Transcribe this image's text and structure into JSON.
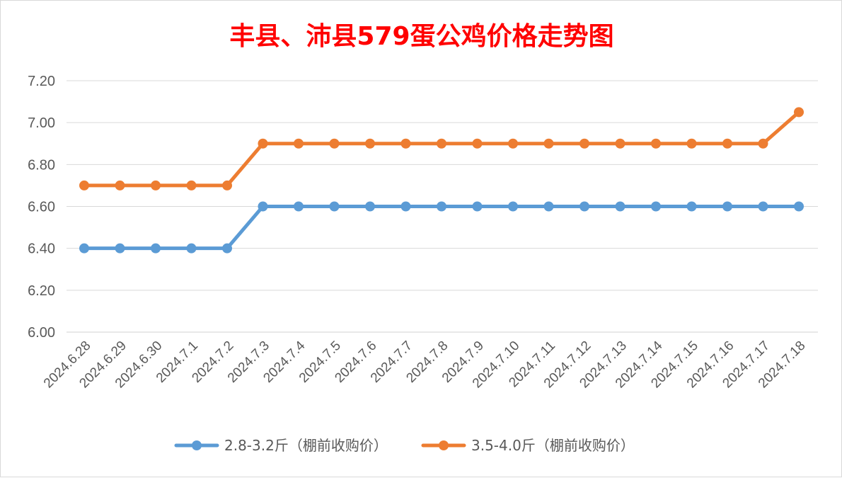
{
  "chart_data": {
    "type": "line",
    "title": "丰县、沛县579蛋公鸡价格走势图",
    "title_color": "#ff0000",
    "categories": [
      "2024.6.28",
      "2024.6.29",
      "2024.6.30",
      "2024.7.1",
      "2024.7.2",
      "2024.7.3",
      "2024.7.4",
      "2024.7.5",
      "2024.7.6",
      "2024.7.7",
      "2024.7.8",
      "2024.7.9",
      "2024.7.10",
      "2024.7.11",
      "2024.7.12",
      "2024.7.13",
      "2024.7.14",
      "2024.7.15",
      "2024.7.16",
      "2024.7.17",
      "2024.7.18"
    ],
    "series": [
      {
        "name": "2.8-3.2斤（棚前收购价）",
        "color": "#5b9bd5",
        "values": [
          6.4,
          6.4,
          6.4,
          6.4,
          6.4,
          6.6,
          6.6,
          6.6,
          6.6,
          6.6,
          6.6,
          6.6,
          6.6,
          6.6,
          6.6,
          6.6,
          6.6,
          6.6,
          6.6,
          6.6,
          6.6
        ]
      },
      {
        "name": "3.5-4.0斤（棚前收购价）",
        "color": "#ed7d31",
        "values": [
          6.7,
          6.7,
          6.7,
          6.7,
          6.7,
          6.9,
          6.9,
          6.9,
          6.9,
          6.9,
          6.9,
          6.9,
          6.9,
          6.9,
          6.9,
          6.9,
          6.9,
          6.9,
          6.9,
          6.9,
          7.05
        ]
      }
    ],
    "ylim": [
      6.0,
      7.2
    ],
    "yticks": [
      "6.00",
      "6.20",
      "6.40",
      "6.60",
      "6.80",
      "7.00",
      "7.20"
    ],
    "xlabel": "",
    "ylabel": "",
    "grid": true,
    "legend_position": "bottom"
  }
}
